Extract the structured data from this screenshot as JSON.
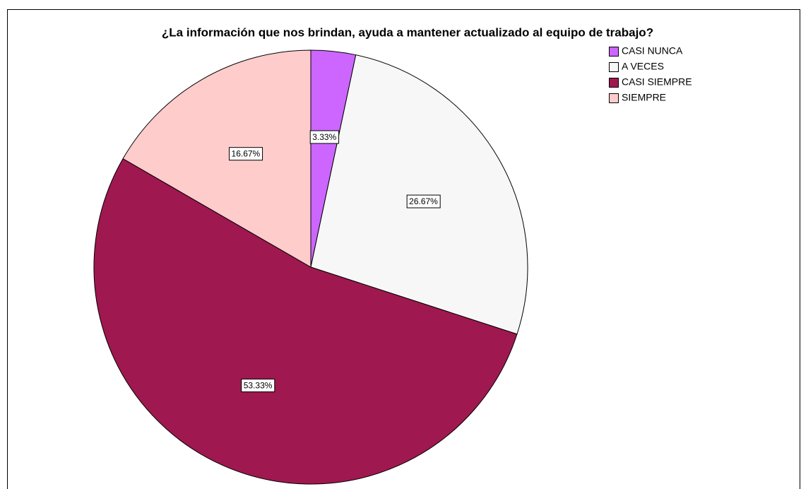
{
  "chart_data": {
    "type": "pie",
    "title": "¿La información que nos brindan, ayuda a mantener actualizado al equipo de trabajo?",
    "categories": [
      "CASI NUNCA",
      "A VECES",
      "CASI SIEMPRE",
      "SIEMPRE"
    ],
    "values": [
      3.33,
      26.67,
      53.33,
      16.67
    ],
    "value_labels": [
      "3.33%",
      "26.67%",
      "53.33%",
      "16.67%"
    ],
    "colors": [
      "#cc66ff",
      "#f7f7f7",
      "#a01850",
      "#ffcccc"
    ],
    "legend": "top-right"
  }
}
